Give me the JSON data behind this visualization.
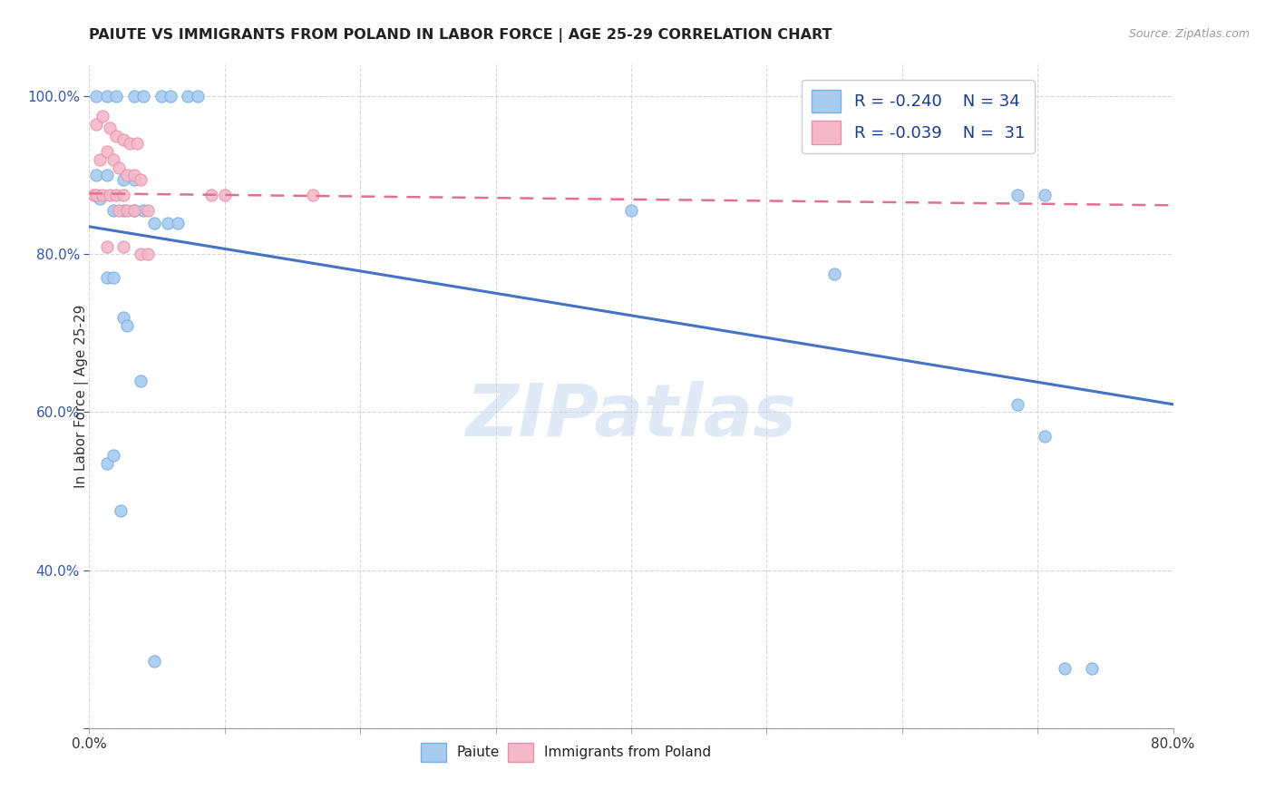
{
  "title": "PAIUTE VS IMMIGRANTS FROM POLAND IN LABOR FORCE | AGE 25-29 CORRELATION CHART",
  "source": "Source: ZipAtlas.com",
  "ylabel": "In Labor Force | Age 25-29",
  "xlim": [
    0.0,
    0.8
  ],
  "ylim": [
    0.2,
    1.04
  ],
  "xticks": [
    0.0,
    0.1,
    0.2,
    0.3,
    0.4,
    0.5,
    0.6,
    0.7,
    0.8
  ],
  "xticklabels": [
    "0.0%",
    "",
    "",
    "",
    "",
    "",
    "",
    "",
    "80.0%"
  ],
  "yticks": [
    0.2,
    0.4,
    0.6,
    0.8,
    1.0
  ],
  "yticklabels": [
    "",
    "40.0%",
    "60.0%",
    "80.0%",
    "100.0%"
  ],
  "color_paiute_face": "#A8CBF0",
  "color_paiute_edge": "#7AAEDE",
  "color_poland_face": "#F5B8C8",
  "color_poland_edge": "#E890A8",
  "color_line_paiute": "#4472C4",
  "color_line_poland": "#E07090",
  "watermark_color": "#C8D8F0",
  "paiute_x": [
    0.005,
    0.013,
    0.02,
    0.033,
    0.04,
    0.053,
    0.06,
    0.073,
    0.08,
    0.005,
    0.013,
    0.025,
    0.033,
    0.008,
    0.018,
    0.025,
    0.033,
    0.04,
    0.048,
    0.058,
    0.065,
    0.013,
    0.018,
    0.025,
    0.028,
    0.038,
    0.013,
    0.018,
    0.023,
    0.048,
    0.4,
    0.55,
    0.685,
    0.705,
    0.685,
    0.705,
    0.72,
    0.74
  ],
  "paiute_y": [
    1.0,
    1.0,
    1.0,
    1.0,
    1.0,
    1.0,
    1.0,
    1.0,
    1.0,
    0.9,
    0.9,
    0.895,
    0.895,
    0.87,
    0.855,
    0.855,
    0.855,
    0.855,
    0.84,
    0.84,
    0.84,
    0.77,
    0.77,
    0.72,
    0.71,
    0.64,
    0.535,
    0.545,
    0.475,
    0.285,
    0.855,
    0.775,
    0.875,
    0.875,
    0.61,
    0.57,
    0.275,
    0.275
  ],
  "poland_x": [
    0.003,
    0.005,
    0.01,
    0.015,
    0.02,
    0.025,
    0.008,
    0.013,
    0.018,
    0.022,
    0.028,
    0.033,
    0.038,
    0.005,
    0.01,
    0.015,
    0.02,
    0.025,
    0.03,
    0.035,
    0.022,
    0.028,
    0.033,
    0.043,
    0.013,
    0.025,
    0.038,
    0.043,
    0.09,
    0.1,
    0.165
  ],
  "poland_y": [
    0.875,
    0.875,
    0.875,
    0.875,
    0.875,
    0.875,
    0.92,
    0.93,
    0.92,
    0.91,
    0.9,
    0.9,
    0.895,
    0.965,
    0.975,
    0.96,
    0.95,
    0.945,
    0.94,
    0.94,
    0.855,
    0.855,
    0.855,
    0.855,
    0.81,
    0.81,
    0.8,
    0.8,
    0.875,
    0.875,
    0.875
  ],
  "line_paiute_x0": 0.0,
  "line_paiute_y0": 0.835,
  "line_paiute_x1": 0.8,
  "line_paiute_y1": 0.61,
  "line_poland_x0": 0.0,
  "line_poland_y0": 0.877,
  "line_poland_x1": 0.8,
  "line_poland_y1": 0.862
}
